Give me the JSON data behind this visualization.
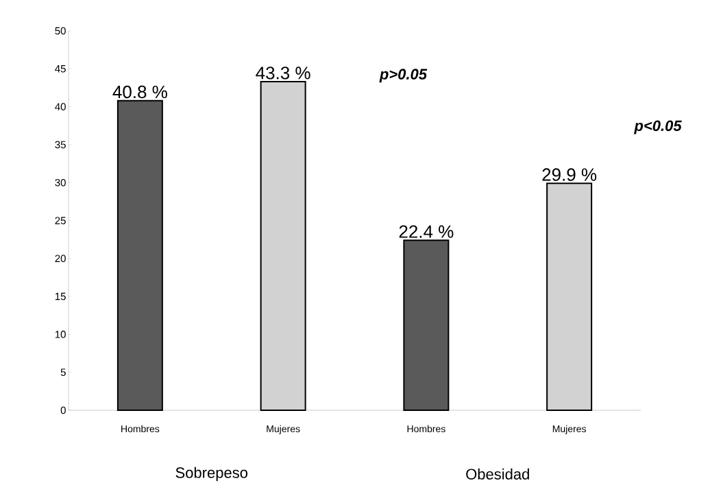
{
  "chart_data": {
    "type": "bar",
    "categories": [
      "Hombres",
      "Mujeres",
      "Hombres",
      "Mujeres"
    ],
    "values": [
      40.8,
      43.3,
      22.4,
      29.9
    ],
    "colors": [
      "#5a5a5a",
      "#d2d2d2",
      "#5a5a5a",
      "#d2d2d2"
    ],
    "value_labels": [
      "40.8 %",
      "43.3 %",
      "22.4 %",
      "29.9 %"
    ],
    "ylim": [
      0,
      50
    ],
    "yticks": [
      0,
      5,
      10,
      15,
      20,
      25,
      30,
      35,
      40,
      45,
      50
    ],
    "annotations": [
      "Sobrepeso",
      "Obesidad",
      "p>0.05",
      "p<0.05"
    ]
  }
}
